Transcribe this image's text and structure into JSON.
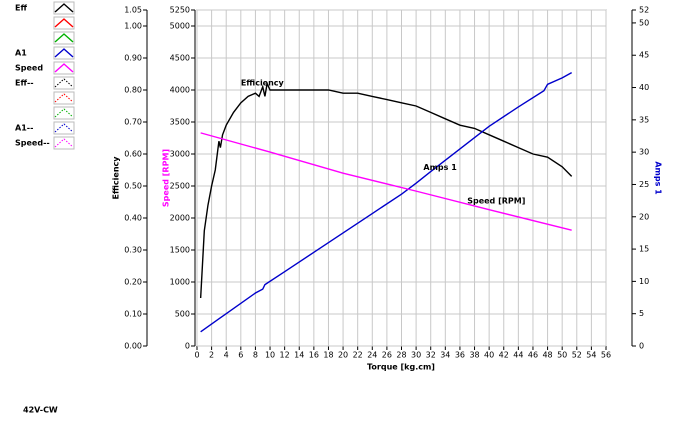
{
  "chart_data": {
    "type": "line",
    "footer": "42V-CW",
    "xlabel": "Torque [kg.cm]",
    "ylabel": "Efficiency",
    "y2label": "Speed [RPM]",
    "y3label": "Amps 1",
    "xlim": [
      0,
      56
    ],
    "xticks": [
      0,
      2,
      4,
      6,
      8,
      10,
      12,
      14,
      16,
      18,
      20,
      22,
      24,
      26,
      28,
      30,
      32,
      34,
      36,
      38,
      40,
      42,
      44,
      46,
      48,
      50,
      52,
      54,
      56
    ],
    "ylim": [
      0,
      1.05
    ],
    "yticks": [
      {
        "value": 0,
        "label": "0.00"
      },
      {
        "value": 0.1,
        "label": "0.10"
      },
      {
        "value": 0.2,
        "label": "0.20"
      },
      {
        "value": 0.3,
        "label": "0.30"
      },
      {
        "value": 0.4,
        "label": "0.40"
      },
      {
        "value": 0.5,
        "label": "0.50"
      },
      {
        "value": 0.6,
        "label": "0.60"
      },
      {
        "value": 0.7,
        "label": "0.70"
      },
      {
        "value": 0.8,
        "label": "0.80"
      },
      {
        "value": 0.9,
        "label": "0.90"
      },
      {
        "value": 1,
        "label": "1.00"
      },
      {
        "value": 1.05,
        "label": "1.05"
      }
    ],
    "y2lim": [
      0,
      5250
    ],
    "y2ticks": [
      0,
      500,
      1000,
      1500,
      2000,
      2500,
      3000,
      3500,
      4000,
      4500,
      5000,
      5250
    ],
    "y3lim": [
      0,
      52
    ],
    "y3ticks": [
      0,
      5,
      10,
      15,
      20,
      25,
      30,
      35,
      40,
      45,
      50,
      52
    ],
    "grid": true,
    "annotations": [
      {
        "text": "Efficiency",
        "x": 6,
        "y": 0.81
      },
      {
        "text": "Amps 1",
        "x": 31,
        "y": 27
      },
      {
        "text": "Speed [RPM]",
        "x": 37,
        "y": 2200
      }
    ],
    "series": [
      {
        "name": "Eff",
        "color": "#000000",
        "dashed": false,
        "axis": "y",
        "x": [
          0.5,
          1,
          1.5,
          2,
          2.5,
          3,
          3.2,
          3.5,
          4,
          5,
          6,
          7,
          8,
          8.5,
          9,
          9.3,
          9.6,
          10,
          12,
          14,
          16,
          18,
          20,
          22,
          24,
          26,
          28,
          30,
          32,
          34,
          36,
          38,
          40,
          42,
          44,
          46,
          48,
          50,
          51.3
        ],
        "values": [
          0.15,
          0.36,
          0.44,
          0.5,
          0.55,
          0.64,
          0.62,
          0.66,
          0.69,
          0.73,
          0.76,
          0.78,
          0.79,
          0.78,
          0.81,
          0.78,
          0.82,
          0.8,
          0.8,
          0.8,
          0.8,
          0.8,
          0.79,
          0.79,
          0.78,
          0.77,
          0.76,
          0.75,
          0.73,
          0.71,
          0.69,
          0.68,
          0.66,
          0.64,
          0.62,
          0.6,
          0.59,
          0.56,
          0.53
        ]
      },
      {
        "name": null,
        "color": "#ff0000",
        "dashed": false
      },
      {
        "name": null,
        "color": "#00b000",
        "dashed": false
      },
      {
        "name": "A1",
        "color": "#0000cc",
        "dashed": false,
        "axis": "y3",
        "x": [
          0.5,
          3,
          4,
          8,
          9,
          9.3,
          12,
          16,
          20,
          24,
          28,
          30,
          32,
          36,
          40,
          44,
          47.5,
          48,
          50,
          51.3
        ],
        "values": [
          2.2,
          4.2,
          5,
          8.2,
          8.8,
          9.5,
          11.5,
          14.5,
          17.5,
          20.5,
          23.5,
          25.2,
          27,
          30.5,
          34,
          37,
          39.5,
          40.5,
          41.5,
          42.3
        ]
      },
      {
        "name": "Speed",
        "color": "#ff00ff",
        "dashed": false,
        "axis": "y2",
        "x": [
          0.5,
          10,
          20,
          30,
          40,
          51.3
        ],
        "values": [
          3330,
          3030,
          2700,
          2420,
          2130,
          1810
        ]
      },
      {
        "name": "Eff--",
        "color": "#000000",
        "dashed": true
      },
      {
        "name": null,
        "color": "#ff0000",
        "dashed": true
      },
      {
        "name": null,
        "color": "#00b000",
        "dashed": true
      },
      {
        "name": "A1--",
        "color": "#0000cc",
        "dashed": true
      },
      {
        "name": "Speed--",
        "color": "#ff00ff",
        "dashed": true
      }
    ]
  }
}
